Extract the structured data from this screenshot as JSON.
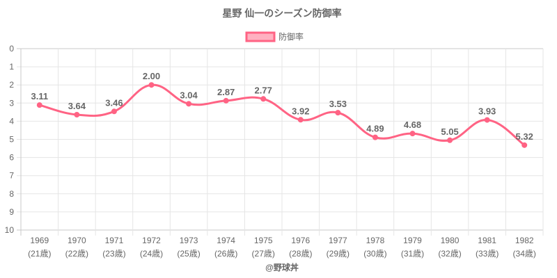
{
  "chart_data": {
    "type": "line",
    "title": "星野 仙一のシーズン防御率",
    "legend": {
      "label": "防御率",
      "position": "top"
    },
    "categories": [
      "1969",
      "1970",
      "1971",
      "1972",
      "1973",
      "1974",
      "1975",
      "1976",
      "1977",
      "1978",
      "1979",
      "1980",
      "1981",
      "1982"
    ],
    "category_sublabels": [
      "(21歳)",
      "(22歳)",
      "(23歳)",
      "(24歳)",
      "(25歳)",
      "(26歳)",
      "(27歳)",
      "(28歳)",
      "(29歳)",
      "(30歳)",
      "(31歳)",
      "(32歳)",
      "(33歳)",
      "(34歳)"
    ],
    "series": [
      {
        "name": "防御率",
        "values": [
          3.11,
          3.64,
          3.46,
          2.0,
          3.04,
          2.87,
          2.77,
          3.92,
          3.53,
          4.89,
          4.68,
          5.05,
          3.93,
          5.32
        ]
      }
    ],
    "data_labels": [
      "3.11",
      "3.64",
      "3.46",
      "2.00",
      "3.04",
      "2.87",
      "2.77",
      "3.92",
      "3.53",
      "4.89",
      "4.68",
      "5.05",
      "3.93",
      "5.32"
    ],
    "ylim": [
      0,
      10
    ],
    "y_reversed": true,
    "y_ticks": [
      "0",
      "1",
      "2",
      "3",
      "4",
      "5",
      "6",
      "7",
      "8",
      "9",
      "10"
    ],
    "grid": true,
    "colors": {
      "line": "#ff6384",
      "fill": "#ffb1c1",
      "grid": "#e5e5e5",
      "text": "#666666"
    }
  },
  "credit": "@野球丼"
}
